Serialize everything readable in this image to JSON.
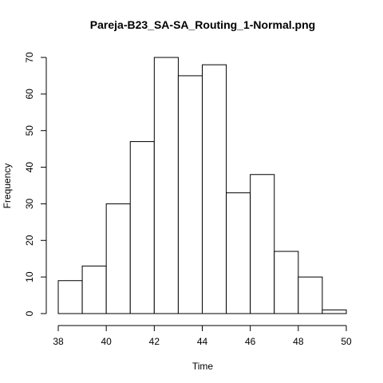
{
  "chart_data": {
    "type": "bar",
    "title": "Pareja-B23_SA-SA_Routing_1-Normal.png",
    "xlabel": "Time",
    "ylabel": "Frequency",
    "bins": [
      {
        "x0": 38,
        "x1": 39,
        "count": 9
      },
      {
        "x0": 39,
        "x1": 40,
        "count": 13
      },
      {
        "x0": 40,
        "x1": 41,
        "count": 30
      },
      {
        "x0": 41,
        "x1": 42,
        "count": 47
      },
      {
        "x0": 42,
        "x1": 43,
        "count": 70
      },
      {
        "x0": 43,
        "x1": 44,
        "count": 65
      },
      {
        "x0": 44,
        "x1": 45,
        "count": 68
      },
      {
        "x0": 45,
        "x1": 46,
        "count": 33
      },
      {
        "x0": 46,
        "x1": 47,
        "count": 38
      },
      {
        "x0": 47,
        "x1": 48,
        "count": 17
      },
      {
        "x0": 48,
        "x1": 49,
        "count": 10
      },
      {
        "x0": 49,
        "x1": 50,
        "count": 1
      }
    ],
    "x_ticks": [
      "38",
      "40",
      "42",
      "44",
      "46",
      "48",
      "50"
    ],
    "y_ticks": [
      "0",
      "10",
      "20",
      "30",
      "40",
      "50",
      "60",
      "70"
    ],
    "xlim": [
      38,
      50
    ],
    "ylim": [
      0,
      70
    ],
    "grid": false,
    "legend": "none",
    "bar_fill": "#ffffff",
    "bar_stroke": "#000000"
  }
}
